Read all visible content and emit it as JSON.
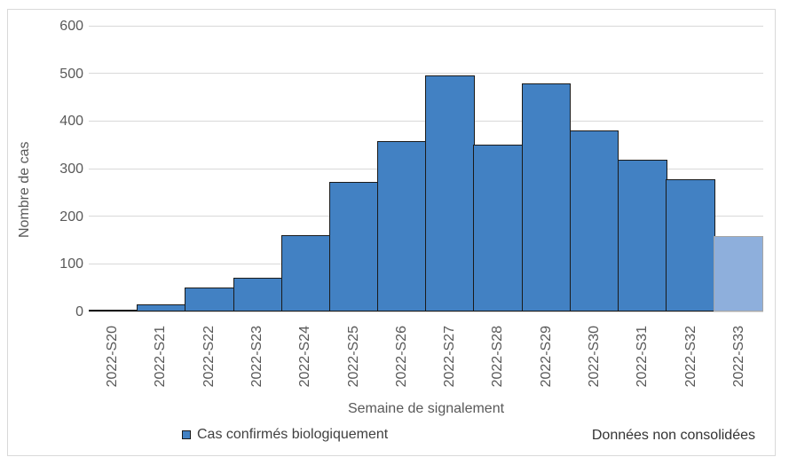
{
  "chart_data": {
    "type": "bar",
    "title": "",
    "categories": [
      "2022-S20",
      "2022-S21",
      "2022-S22",
      "2022-S23",
      "2022-S24",
      "2022-S25",
      "2022-S26",
      "2022-S27",
      "2022-S28",
      "2022-S29",
      "2022-S30",
      "2022-S31",
      "2022-S32",
      "2022-S33"
    ],
    "series": [
      {
        "name": "Cas confirmés biologiquement",
        "values": [
          2,
          15,
          50,
          71,
          160,
          272,
          358,
          498,
          351,
          481,
          382,
          320,
          279,
          158
        ]
      }
    ],
    "xlabel": "Semaine de signalement",
    "ylabel": "Nombre de cas",
    "ylim": [
      0,
      600
    ],
    "yticks": [
      0,
      100,
      200,
      300,
      400,
      500,
      600
    ],
    "grid": true,
    "bar_gap": 0,
    "legend_position": "bottom-left",
    "provisional_last_bar": true,
    "colors": {
      "bar_fill": "#4281C3",
      "bar_border": "#1A1A1A",
      "provisional_fill": "#8EAFDC",
      "provisional_border": "#A6A6A6",
      "gridline": "#D9D9D9",
      "tick_label": "#595959",
      "axis_title": "#595959",
      "note_text": "#333333",
      "frame_border": "#D9D9D9"
    }
  },
  "note": {
    "text": "Données non consolidées"
  }
}
